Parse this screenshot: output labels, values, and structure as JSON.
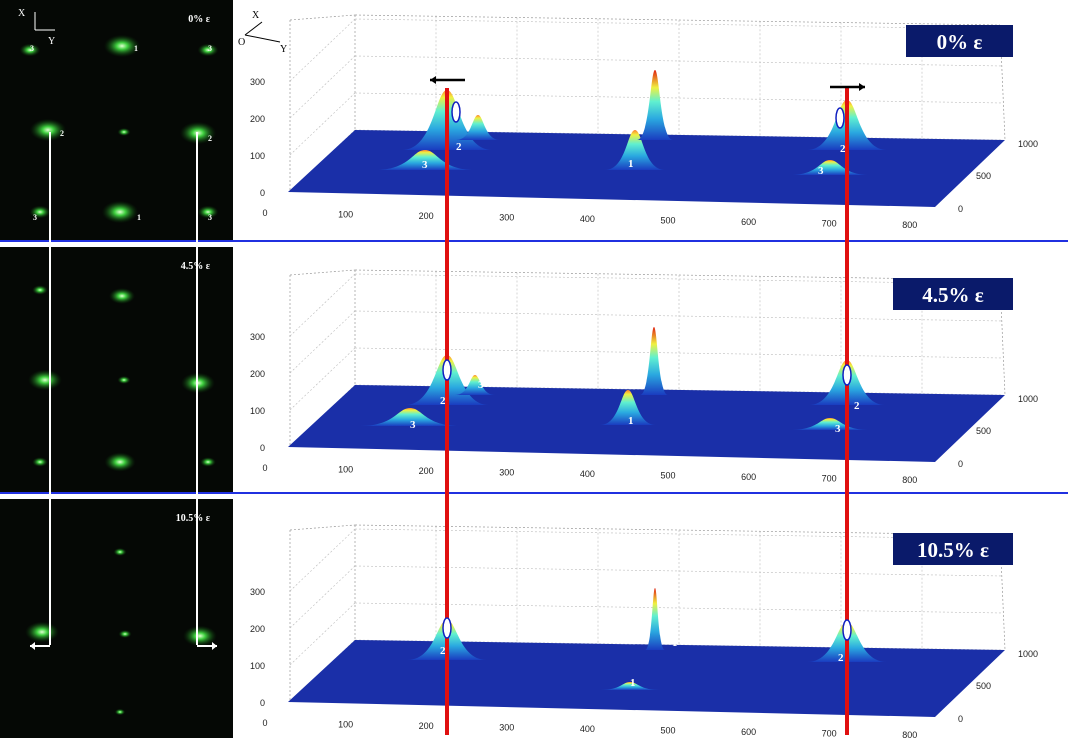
{
  "axes": {
    "x": "X",
    "y": "Y",
    "origin": "O"
  },
  "z_ticks": [
    "0",
    "100",
    "200",
    "300"
  ],
  "x_ticks": [
    "0",
    "100",
    "200",
    "300",
    "400",
    "500",
    "600",
    "700",
    "800"
  ],
  "y_ticks": [
    "0",
    "500",
    "1000"
  ],
  "panels": [
    {
      "image_label": "0% ε",
      "plot_label": "0% ε",
      "image_spot_labels": [
        "3",
        "1",
        "3",
        "2",
        "2",
        "3",
        "1",
        "3"
      ],
      "peak_labels": [
        "3",
        "2",
        "1",
        "1",
        "3",
        "3",
        "2",
        "3"
      ]
    },
    {
      "image_label": "4.5% ε",
      "plot_label": "4.5% ε",
      "peak_labels": [
        "3",
        "2",
        "1",
        "1",
        "3",
        "3",
        "2",
        "3"
      ]
    },
    {
      "image_label": "10.5% ε",
      "plot_label": "10.5% ε",
      "peak_labels": [
        "2",
        "1",
        "1",
        "2"
      ]
    }
  ]
}
